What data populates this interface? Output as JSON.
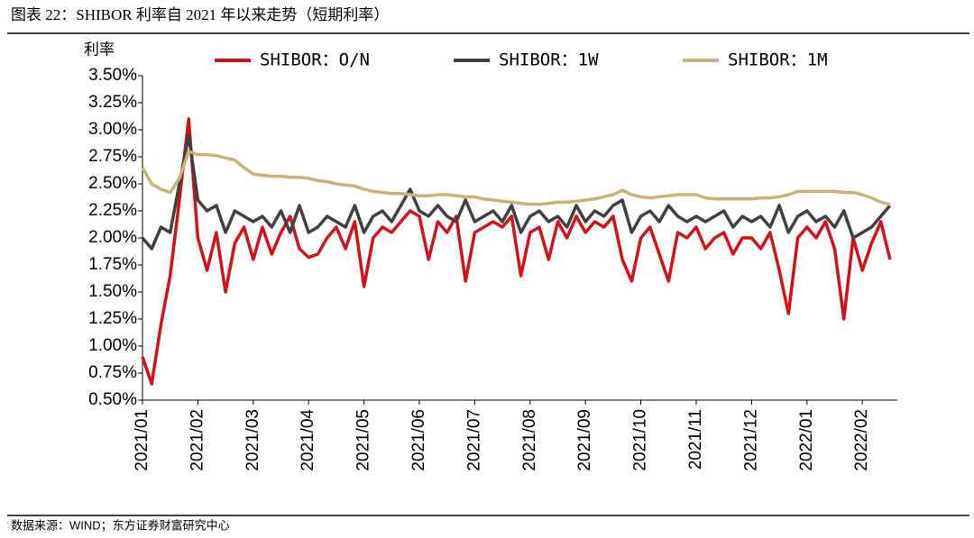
{
  "chart_data": {
    "type": "line",
    "title": "图表 22：SHIBOR 利率自 2021 年以来走势（短期利率）",
    "y_label": "利率",
    "source": "数据来源：WIND；东方证券财富研究中心",
    "categories": [
      "2021/01",
      null,
      null,
      null,
      null,
      null,
      "2021/02",
      null,
      null,
      null,
      null,
      null,
      "2021/03",
      null,
      null,
      null,
      null,
      null,
      "2021/04",
      null,
      null,
      null,
      null,
      null,
      "2021/05",
      null,
      null,
      null,
      null,
      null,
      "2021/06",
      null,
      null,
      null,
      null,
      null,
      "2021/07",
      null,
      null,
      null,
      null,
      null,
      "2021/08",
      null,
      null,
      null,
      null,
      null,
      "2021/09",
      null,
      null,
      null,
      null,
      null,
      "2021/10",
      null,
      null,
      null,
      null,
      null,
      "2021/11",
      null,
      null,
      null,
      null,
      null,
      "2021/12",
      null,
      null,
      null,
      null,
      null,
      "2022/01",
      null,
      null,
      null,
      null,
      null,
      "2022/02",
      null,
      null,
      null
    ],
    "series": [
      {
        "name": "SHIBOR：O/N",
        "color": "#d0121b",
        "values": [
          0.9,
          0.65,
          1.2,
          1.65,
          2.35,
          3.1,
          2.0,
          1.7,
          2.05,
          1.5,
          1.95,
          2.1,
          1.8,
          2.1,
          1.85,
          2.05,
          2.2,
          1.9,
          1.82,
          1.85,
          2.0,
          2.1,
          1.9,
          2.15,
          1.55,
          2.0,
          2.1,
          2.05,
          2.15,
          2.25,
          2.2,
          1.8,
          2.15,
          2.05,
          2.2,
          1.6,
          2.05,
          2.1,
          2.15,
          2.1,
          2.2,
          1.65,
          2.05,
          2.1,
          1.8,
          2.15,
          2.0,
          2.2,
          2.05,
          2.15,
          2.1,
          2.2,
          1.8,
          1.6,
          2.0,
          2.1,
          1.85,
          1.6,
          2.05,
          2.0,
          2.1,
          1.9,
          2.0,
          2.05,
          1.85,
          2.0,
          2.0,
          1.9,
          2.05,
          1.7,
          1.3,
          2.0,
          2.1,
          2.0,
          2.15,
          1.9,
          1.25,
          2.0,
          1.7,
          1.95,
          2.15,
          1.8
        ]
      },
      {
        "name": "SHIBOR：1W",
        "color": "#404040",
        "values": [
          2.0,
          1.9,
          2.1,
          2.05,
          2.5,
          2.95,
          2.35,
          2.25,
          2.3,
          2.05,
          2.25,
          2.2,
          2.15,
          2.2,
          2.1,
          2.25,
          2.05,
          2.3,
          2.05,
          2.1,
          2.2,
          2.15,
          2.1,
          2.3,
          2.05,
          2.2,
          2.25,
          2.15,
          2.3,
          2.45,
          2.25,
          2.2,
          2.3,
          2.2,
          2.15,
          2.35,
          2.15,
          2.2,
          2.25,
          2.15,
          2.3,
          2.05,
          2.2,
          2.25,
          2.15,
          2.2,
          2.1,
          2.3,
          2.15,
          2.25,
          2.2,
          2.3,
          2.35,
          2.05,
          2.2,
          2.25,
          2.15,
          2.3,
          2.2,
          2.15,
          2.2,
          2.15,
          2.2,
          2.25,
          2.1,
          2.2,
          2.15,
          2.2,
          2.1,
          2.3,
          2.05,
          2.2,
          2.25,
          2.15,
          2.2,
          2.1,
          2.25,
          2.0,
          2.05,
          2.1,
          2.2,
          2.3
        ]
      },
      {
        "name": "SHIBOR：1M",
        "color": "#c8b27a",
        "values": [
          2.65,
          2.5,
          2.45,
          2.42,
          2.55,
          2.8,
          2.77,
          2.77,
          2.76,
          2.74,
          2.72,
          2.65,
          2.59,
          2.58,
          2.57,
          2.57,
          2.56,
          2.56,
          2.55,
          2.53,
          2.52,
          2.5,
          2.49,
          2.48,
          2.45,
          2.43,
          2.42,
          2.41,
          2.41,
          2.4,
          2.39,
          2.39,
          2.4,
          2.4,
          2.39,
          2.38,
          2.38,
          2.36,
          2.35,
          2.34,
          2.33,
          2.32,
          2.31,
          2.31,
          2.32,
          2.33,
          2.33,
          2.34,
          2.35,
          2.36,
          2.38,
          2.4,
          2.44,
          2.4,
          2.38,
          2.37,
          2.38,
          2.39,
          2.4,
          2.4,
          2.4,
          2.37,
          2.36,
          2.36,
          2.36,
          2.36,
          2.36,
          2.37,
          2.37,
          2.38,
          2.4,
          2.43,
          2.43,
          2.43,
          2.43,
          2.43,
          2.42,
          2.42,
          2.4,
          2.37,
          2.33,
          2.31
        ]
      }
    ],
    "ylim": [
      0.5,
      3.5
    ],
    "yticks": [
      {
        "value": 0.5,
        "label": "0.50%"
      },
      {
        "value": 0.75,
        "label": "0.75%"
      },
      {
        "value": 1.0,
        "label": "1.00%"
      },
      {
        "value": 1.25,
        "label": "1.25%"
      },
      {
        "value": 1.5,
        "label": "1.50%"
      },
      {
        "value": 1.75,
        "label": "1.75%"
      },
      {
        "value": 2.0,
        "label": "2.00%"
      },
      {
        "value": 2.25,
        "label": "2.25%"
      },
      {
        "value": 2.5,
        "label": "2.50%"
      },
      {
        "value": 2.75,
        "label": "2.75%"
      },
      {
        "value": 3.0,
        "label": "3.00%"
      },
      {
        "value": 3.25,
        "label": "3.25%"
      },
      {
        "value": 3.5,
        "label": "3.50%"
      }
    ],
    "grid": false,
    "legend": "top"
  }
}
